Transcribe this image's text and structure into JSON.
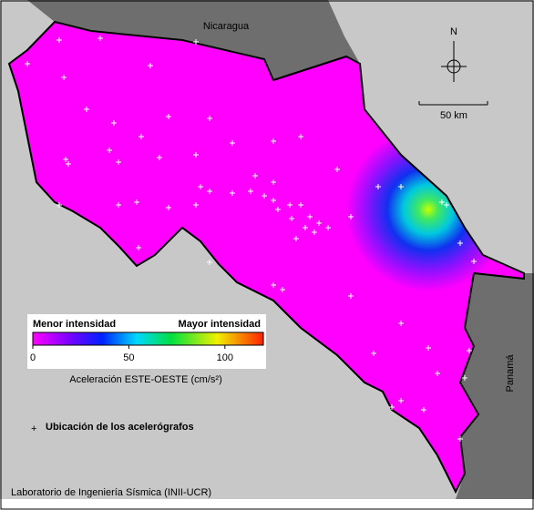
{
  "map": {
    "labels": {
      "north_country": "Nicaragua",
      "south_country": "Panamá"
    },
    "north_arrow": "N",
    "scale_bar": "50 km",
    "colorbar": {
      "low_label": "Menor intensidad",
      "high_label": "Mayor intensidad",
      "lim": [
        0,
        120
      ],
      "ticks": [
        0,
        50,
        100
      ],
      "title": "Aceleración ESTE-OESTE (cm/s²)"
    },
    "legend": "Ubicación de los acelerógrafos",
    "credit": "Laboratorio de Ingeniería Sísmica (INII-UCR)"
  }
}
